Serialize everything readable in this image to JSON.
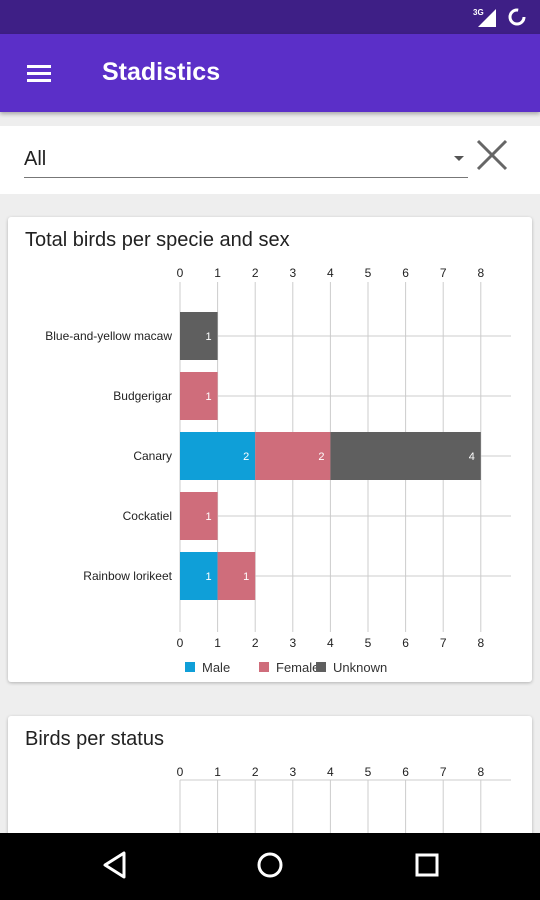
{
  "status_bar": {
    "network": "3G"
  },
  "app_bar": {
    "title": "Stadistics",
    "menu_icon": "hamburger-menu-icon"
  },
  "filter": {
    "selected": "All",
    "clear_icon": "close-icon"
  },
  "charts": [
    {
      "title": "Total birds per specie and sex",
      "ticks": [
        "0",
        "1",
        "2",
        "3",
        "4",
        "5",
        "6",
        "7",
        "8"
      ],
      "legend": [
        "Male",
        "Female",
        "Unknown"
      ]
    },
    {
      "title": "Birds per status",
      "ticks": [
        "0",
        "1",
        "2",
        "3",
        "4",
        "5",
        "6",
        "7",
        "8"
      ]
    }
  ],
  "chart_data": [
    {
      "type": "bar",
      "orientation": "horizontal",
      "stacked": true,
      "title": "Total birds per specie and sex",
      "categories": [
        "Blue-and-yellow macaw",
        "Budgerigar",
        "Canary",
        "Cockatiel",
        "Rainbow lorikeet"
      ],
      "series": [
        {
          "name": "Male",
          "color": "#0f9fd8",
          "values": [
            0,
            0,
            2,
            0,
            1
          ]
        },
        {
          "name": "Female",
          "color": "#cf6d7b",
          "values": [
            0,
            1,
            2,
            1,
            1
          ]
        },
        {
          "name": "Unknown",
          "color": "#5f5f5f",
          "values": [
            1,
            0,
            4,
            0,
            0
          ]
        }
      ],
      "xlim": [
        0,
        8
      ],
      "grid": true,
      "legend_position": "bottom"
    },
    {
      "type": "bar",
      "orientation": "horizontal",
      "title": "Birds per status",
      "categories": [],
      "series": [],
      "xlim": [
        0,
        8
      ],
      "grid": true
    }
  ],
  "nav_bar": {
    "back_icon": "back-icon",
    "home_icon": "home-icon",
    "recents_icon": "recents-icon"
  }
}
